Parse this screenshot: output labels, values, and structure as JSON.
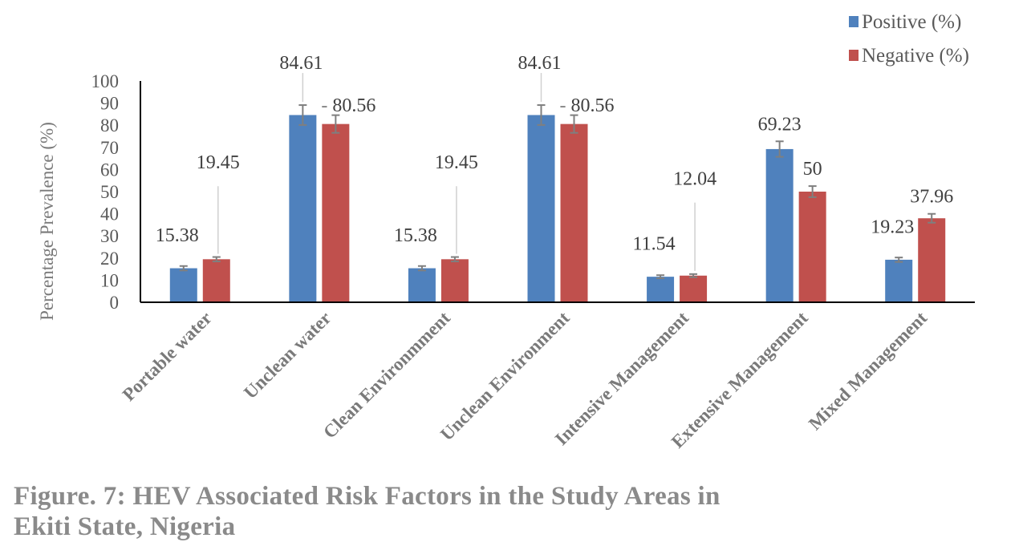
{
  "chart_data": {
    "type": "bar",
    "ylabel": "Percentage Prevalence (%)",
    "xlabel": "",
    "ylim": [
      0,
      100
    ],
    "yticks": [
      0,
      10,
      20,
      30,
      40,
      50,
      60,
      70,
      80,
      90,
      100
    ],
    "legend_position": "top-right",
    "grid": false,
    "categories": [
      "Portable water",
      "Unclean water",
      "Clean Environmment",
      "Unclean Environment",
      "Intensive Management",
      "Extensive Management",
      "Mixed Management"
    ],
    "series": [
      {
        "name": "Positive (%)",
        "color": "#4f81bd",
        "values": [
          15.38,
          84.61,
          15.38,
          84.61,
          11.54,
          69.23,
          19.23
        ],
        "labels": [
          "15.38",
          "84.61",
          "15.38",
          "84.61",
          "11.54",
          "69.23",
          "19.23"
        ],
        "errors": [
          1,
          4.5,
          1,
          4.5,
          0.7,
          3.5,
          1
        ]
      },
      {
        "name": "Negative (%)",
        "color": "#c0504d",
        "values": [
          19.45,
          80.56,
          19.45,
          80.56,
          12.04,
          50,
          37.96
        ],
        "labels": [
          "19.45",
          "80.56",
          "19.45",
          "80.56",
          "12.04",
          "50",
          "37.96"
        ],
        "errors": [
          1,
          4,
          1,
          4,
          0.7,
          2.5,
          2
        ]
      }
    ]
  },
  "caption": {
    "line1": "Figure. 7: HEV Associated Risk Factors  in the Study Areas in",
    "line2": "Ekiti State, Nigeria"
  }
}
